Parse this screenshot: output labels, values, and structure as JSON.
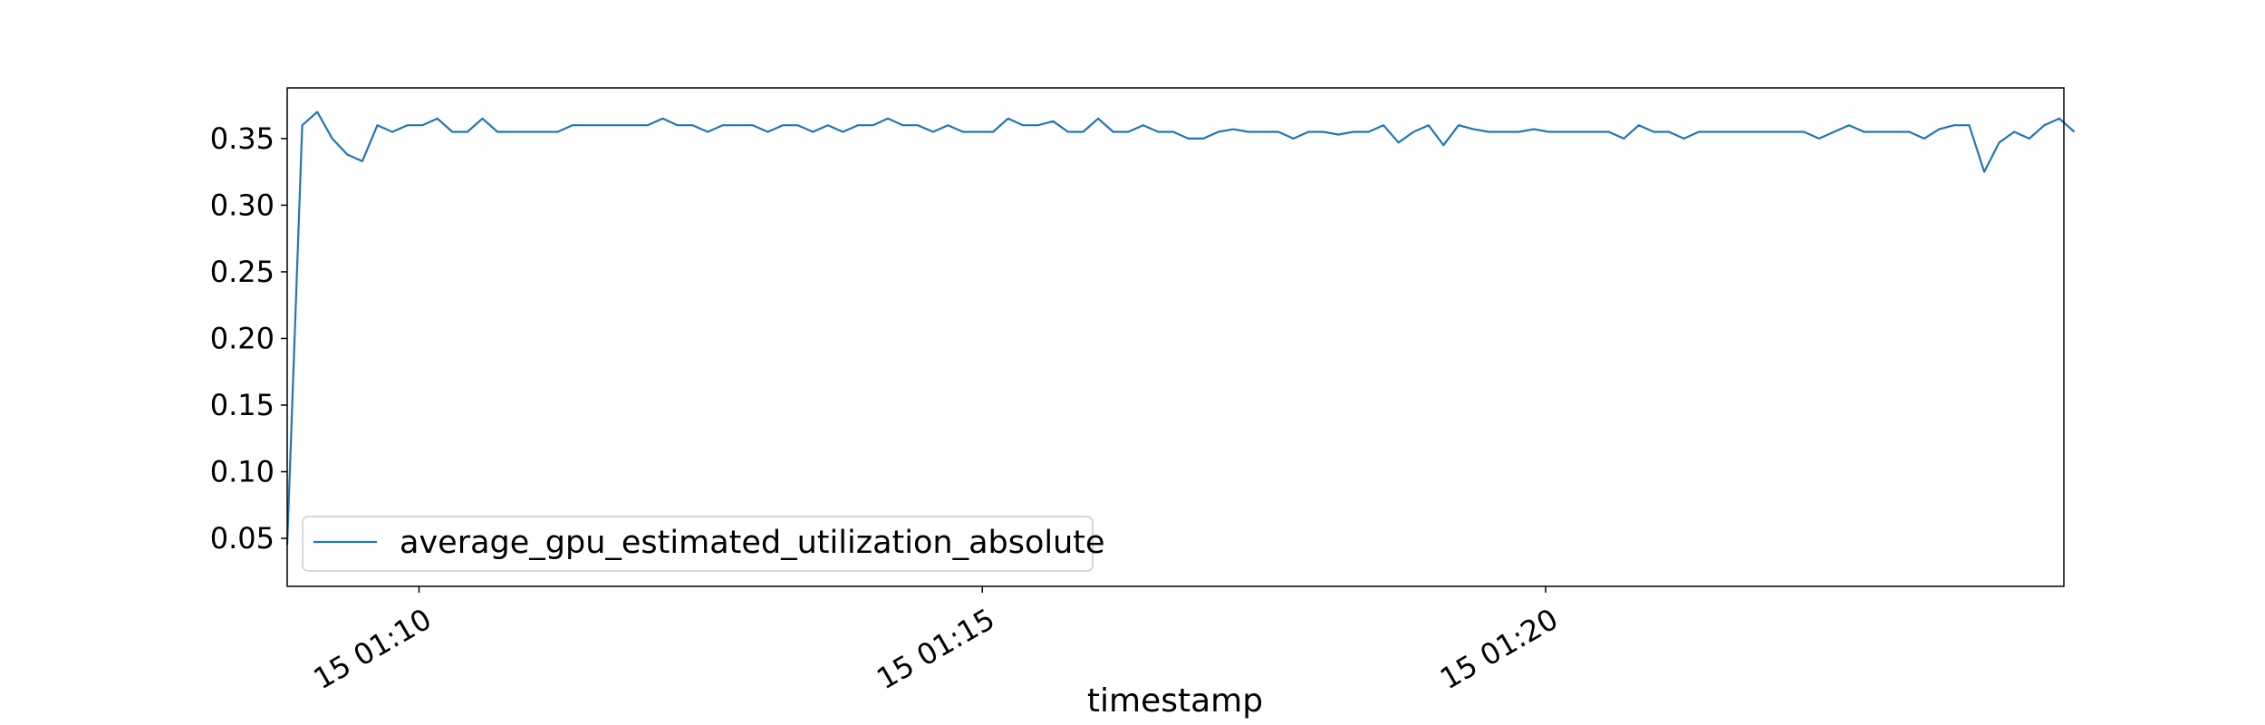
{
  "chart_data": {
    "type": "line",
    "title": "",
    "xlabel": "timestamp",
    "ylabel": "",
    "x_range_minutes": [
      8.83,
      24.6
    ],
    "ylim": [
      0.014,
      0.388
    ],
    "x_ticks": [
      {
        "minute": 10,
        "label": "15 01:10"
      },
      {
        "minute": 15,
        "label": "15 01:15"
      },
      {
        "minute": 20,
        "label": "15 01:20"
      }
    ],
    "y_ticks": [
      {
        "value": 0.05,
        "label": "0.05"
      },
      {
        "value": 0.1,
        "label": "0.10"
      },
      {
        "value": 0.15,
        "label": "0.15"
      },
      {
        "value": 0.2,
        "label": "0.20"
      },
      {
        "value": 0.25,
        "label": "0.25"
      },
      {
        "value": 0.3,
        "label": "0.30"
      },
      {
        "value": 0.35,
        "label": "0.35"
      }
    ],
    "grid": false,
    "legend_position": "lower-left",
    "series": [
      {
        "name": "average_gpu_estimated_utilization_absolute",
        "color": "#1f77b4",
        "x_start_minute": 8.83,
        "x_step_minutes": 0.1333,
        "values": [
          0.045,
          0.36,
          0.37,
          0.35,
          0.338,
          0.333,
          0.36,
          0.355,
          0.36,
          0.36,
          0.365,
          0.355,
          0.355,
          0.365,
          0.355,
          0.355,
          0.355,
          0.355,
          0.355,
          0.36,
          0.36,
          0.36,
          0.36,
          0.36,
          0.36,
          0.365,
          0.36,
          0.36,
          0.355,
          0.36,
          0.36,
          0.36,
          0.355,
          0.36,
          0.36,
          0.355,
          0.36,
          0.355,
          0.36,
          0.36,
          0.365,
          0.36,
          0.36,
          0.355,
          0.36,
          0.355,
          0.355,
          0.355,
          0.365,
          0.36,
          0.36,
          0.363,
          0.355,
          0.355,
          0.365,
          0.355,
          0.355,
          0.36,
          0.355,
          0.355,
          0.35,
          0.35,
          0.355,
          0.357,
          0.355,
          0.355,
          0.355,
          0.35,
          0.355,
          0.355,
          0.353,
          0.355,
          0.355,
          0.36,
          0.347,
          0.355,
          0.36,
          0.345,
          0.36,
          0.357,
          0.355,
          0.355,
          0.355,
          0.357,
          0.355,
          0.355,
          0.355,
          0.355,
          0.355,
          0.35,
          0.36,
          0.355,
          0.355,
          0.35,
          0.355,
          0.355,
          0.355,
          0.355,
          0.355,
          0.355,
          0.355,
          0.355,
          0.35,
          0.355,
          0.36,
          0.355,
          0.355,
          0.355,
          0.355,
          0.35,
          0.357,
          0.36,
          0.36,
          0.325,
          0.347,
          0.355,
          0.35,
          0.36,
          0.365,
          0.355
        ]
      }
    ]
  }
}
